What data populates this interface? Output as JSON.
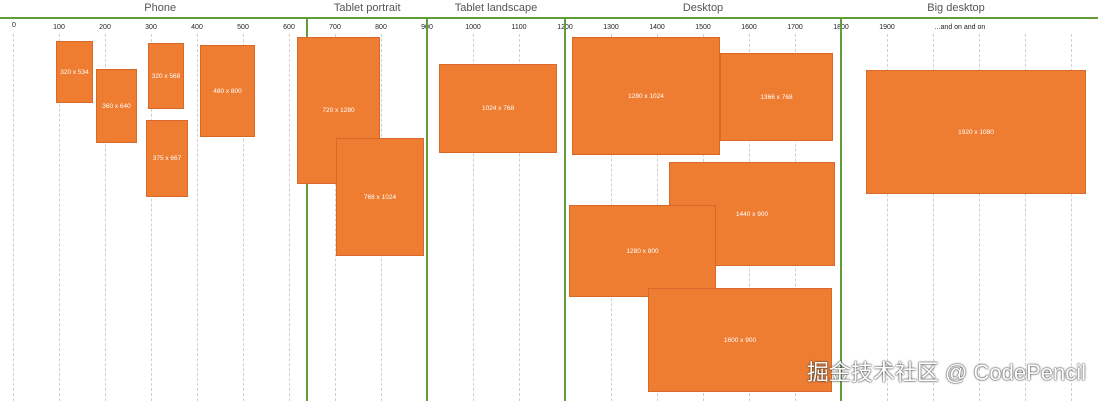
{
  "categories": [
    {
      "label": "Phone",
      "from": 0,
      "to": 640
    },
    {
      "label": "Tablet portrait",
      "from": 640,
      "to": 900
    },
    {
      "label": "Tablet landscape",
      "from": 900,
      "to": 1200
    },
    {
      "label": "Desktop",
      "from": 1200,
      "to": 1800
    },
    {
      "label": "Big desktop",
      "from": 1800,
      "to": 2300
    }
  ],
  "ticks": [
    {
      "value": 0,
      "label": "0"
    },
    {
      "value": 100,
      "label": "100"
    },
    {
      "value": 200,
      "label": "200"
    },
    {
      "value": 300,
      "label": "300"
    },
    {
      "value": 400,
      "label": "400"
    },
    {
      "value": 500,
      "label": "500"
    },
    {
      "value": 600,
      "label": "600"
    },
    {
      "value": 700,
      "label": "700"
    },
    {
      "value": 800,
      "label": "800"
    },
    {
      "value": 900,
      "label": "900"
    },
    {
      "value": 1000,
      "label": "1000"
    },
    {
      "value": 1100,
      "label": "1100"
    },
    {
      "value": 1200,
      "label": "1200"
    },
    {
      "value": 1300,
      "label": "1300"
    },
    {
      "value": 1400,
      "label": "1400"
    },
    {
      "value": 1500,
      "label": "1500"
    },
    {
      "value": 1600,
      "label": "1600"
    },
    {
      "value": 1700,
      "label": "1700"
    },
    {
      "value": 1800,
      "label": "1800"
    },
    {
      "value": 1900,
      "label": "1900"
    },
    {
      "value": 2000,
      "label": "...and on and on"
    },
    {
      "value": 2100,
      "label": ""
    },
    {
      "value": 2200,
      "label": ""
    },
    {
      "value": 2300,
      "label": ""
    }
  ],
  "resolutions": [
    {
      "label": "320 x 534",
      "width": 320,
      "height": 534
    },
    {
      "label": "360 x 640",
      "width": 360,
      "height": 640
    },
    {
      "label": "320 x 568",
      "width": 320,
      "height": 568
    },
    {
      "label": "375 x 667",
      "width": 375,
      "height": 667
    },
    {
      "label": "480 x 800",
      "width": 480,
      "height": 800
    },
    {
      "label": "720 x 1280",
      "width": 720,
      "height": 1280
    },
    {
      "label": "768 x 1024",
      "width": 768,
      "height": 1024
    },
    {
      "label": "1024 x 768",
      "width": 1024,
      "height": 768
    },
    {
      "label": "1280 x 1024",
      "width": 1280,
      "height": 1024
    },
    {
      "label": "1366 x 768",
      "width": 1366,
      "height": 768
    },
    {
      "label": "1440 x 900",
      "width": 1440,
      "height": 900
    },
    {
      "label": "1280 x 800",
      "width": 1280,
      "height": 800
    },
    {
      "label": "1600 x 900",
      "width": 1600,
      "height": 900
    },
    {
      "label": "1920 x 1080",
      "width": 1920,
      "height": 1080
    }
  ],
  "colors": {
    "box": "#ee7d31",
    "divider": "#5f9e3a"
  },
  "watermark": "掘金技术社区 @ CodePencil"
}
